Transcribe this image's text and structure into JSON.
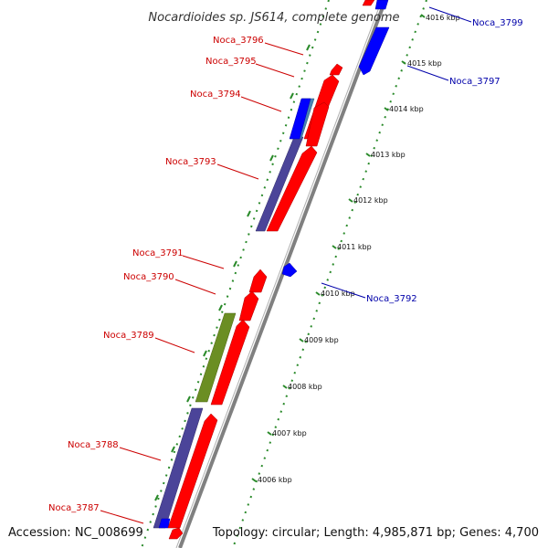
{
  "title": "Nocardioides sp. JS614, complete genome",
  "accession": "Accession: NC_008699",
  "summary": "Topology: circular; Length: 4,985,871 bp; Genes: 4,700",
  "colors": {
    "forward_gene": "#ff0000",
    "reverse_gene": "#0000ff",
    "cog_purple": "#4b4499",
    "cog_olive": "#6b8e23",
    "cog_steel": "#4682b4",
    "backbone": "#808080",
    "tick_green": "#2a8a2a",
    "forward_label": "#cc0000",
    "reverse_label": "#0000aa"
  },
  "kbp_ticks": [
    "4006 kbp",
    "4007 kbp",
    "4008 kbp",
    "4009 kbp",
    "4010 kbp",
    "4011 kbp",
    "4012 kbp",
    "4013 kbp",
    "4014 kbp",
    "4015 kbp",
    "4016 kbp"
  ],
  "gene_labels": [
    {
      "id": "noca-3787",
      "text": "Noca_3787",
      "strand": "forward"
    },
    {
      "id": "noca-3788",
      "text": "Noca_3788",
      "strand": "forward"
    },
    {
      "id": "noca-3789",
      "text": "Noca_3789",
      "strand": "forward"
    },
    {
      "id": "noca-3790",
      "text": "Noca_3790",
      "strand": "forward"
    },
    {
      "id": "noca-3791",
      "text": "Noca_3791",
      "strand": "forward"
    },
    {
      "id": "noca-3792",
      "text": "Noca_3792",
      "strand": "reverse"
    },
    {
      "id": "noca-3793",
      "text": "Noca_3793",
      "strand": "forward"
    },
    {
      "id": "noca-3794",
      "text": "Noca_3794",
      "strand": "forward"
    },
    {
      "id": "noca-3795",
      "text": "Noca_3795",
      "strand": "forward"
    },
    {
      "id": "noca-3796",
      "text": "Noca_3796",
      "strand": "forward"
    },
    {
      "id": "noca-3797",
      "text": "Noca_3797",
      "strand": "reverse"
    },
    {
      "id": "noca-3799",
      "text": "Noca_3799",
      "strand": "reverse"
    }
  ]
}
